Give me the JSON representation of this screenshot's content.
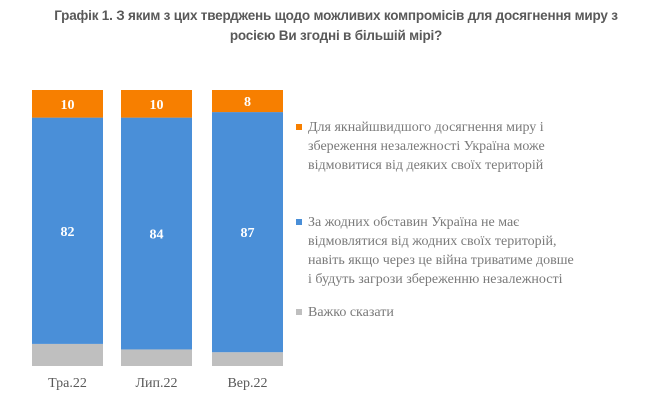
{
  "chart_data": {
    "type": "bar",
    "stacked": true,
    "title_lines": [
      "Графік 1. З яким з цих тверджень щодо можливих компромісів для досягнення миру з",
      "росією Ви згодні в більшій мірі?"
    ],
    "categories": [
      "Тра.22",
      "Лип.22",
      "Вер.22"
    ],
    "series": [
      {
        "name": "Важко сказати",
        "color": "#bfbfbf",
        "values": [
          8,
          6,
          5
        ],
        "show_labels": false
      },
      {
        "name": "За жодних обставин Україна не має\nвідмовлятися від жодних своїх територій,\nнавіть якщо через це війна триватиме довше\nі будуть загрози збереженню незалежності",
        "color": "#4a8fd8",
        "values": [
          82,
          84,
          87
        ],
        "show_labels": true
      },
      {
        "name": "Для якнайшвидшого досягнення миру і\nзбереження незалежності Україна може\nвідмовитися від деяких своїх територій",
        "color": "#f77f00",
        "values": [
          10,
          10,
          8
        ],
        "show_labels": true
      }
    ],
    "ylim": [
      0,
      100
    ],
    "legend_placement": "right",
    "grid": false
  }
}
